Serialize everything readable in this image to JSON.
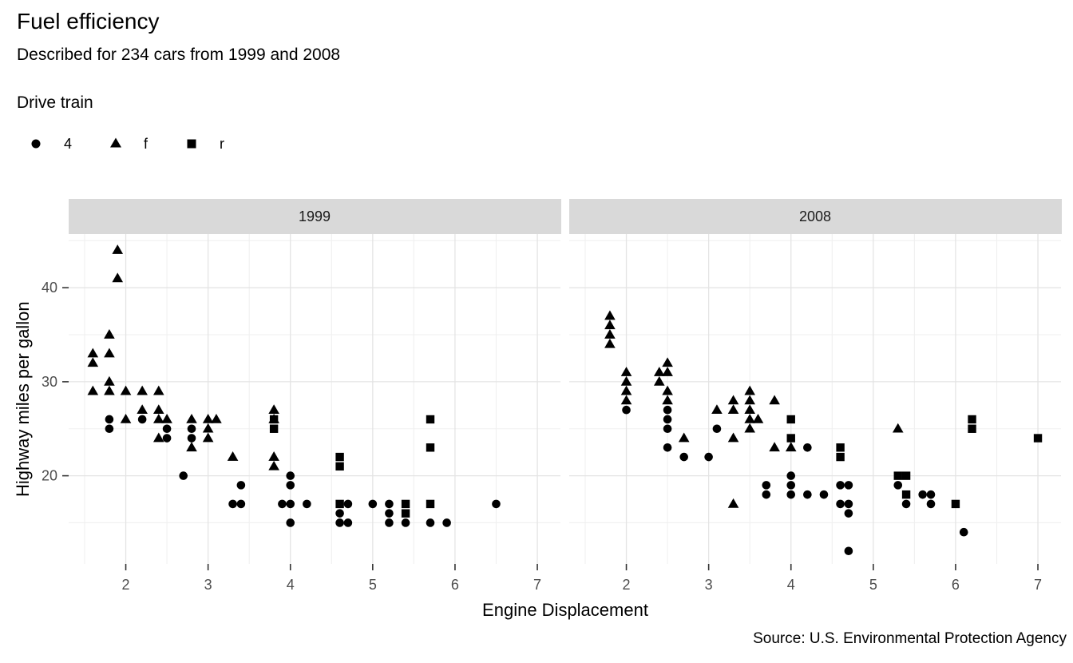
{
  "title": "Fuel efficiency",
  "subtitle": "Described for 234 cars from 1999 and 2008",
  "caption": "Source: U.S. Environmental Protection Agency",
  "axes": {
    "x_label": "Engine Displacement",
    "y_label": "Highway miles per gallon"
  },
  "legend": {
    "title": "Drive train",
    "items": [
      {
        "label": "4",
        "shape": "circle"
      },
      {
        "label": "f",
        "shape": "triangle"
      },
      {
        "label": "r",
        "shape": "square"
      }
    ]
  },
  "chart_data": {
    "type": "scatter",
    "xlabel": "Engine Displacement",
    "ylabel": "Highway miles per gallon",
    "facet_variable": "year",
    "shape_variable": "drive train",
    "point_color": "#000000",
    "x_domain": [
      1.306,
      7.281
    ],
    "y_domain": [
      10.62,
      45.71
    ],
    "x_ticks": [
      2,
      3,
      4,
      5,
      6,
      7
    ],
    "x_minor_ticks": [
      1.5,
      2.5,
      3.5,
      4.5,
      5.5,
      6.5
    ],
    "y_ticks": [
      20,
      30,
      40
    ],
    "y_minor_ticks": [
      15,
      25,
      35,
      45
    ],
    "grid": true,
    "legend_position": "top-left",
    "colors": {
      "strip_bg": "#d9d9d9",
      "strip_text": "#1a1a1a",
      "grid_major": "#e4e4e4",
      "grid_minor": "#f0f0f0",
      "tick_mark": "#333333",
      "tick_label": "#4d4d4d",
      "point": "#000000"
    },
    "facets": [
      {
        "label": "1999",
        "series": [
          {
            "drv": "r",
            "shape": "square",
            "points": [
              [
                3.8,
                26
              ],
              [
                3.8,
                25
              ],
              [
                4.6,
                22
              ],
              [
                4.6,
                21
              ],
              [
                4.6,
                17
              ],
              [
                5.4,
                17
              ],
              [
                5.4,
                16
              ],
              [
                5.7,
                26
              ],
              [
                5.7,
                23
              ],
              [
                5.7,
                17
              ]
            ]
          },
          {
            "drv": "4",
            "shape": "circle",
            "points": [
              [
                1.8,
                26
              ],
              [
                1.8,
                25
              ],
              [
                2.2,
                26
              ],
              [
                2.5,
                25
              ],
              [
                2.5,
                24
              ],
              [
                2.8,
                25
              ],
              [
                2.8,
                24
              ],
              [
                2.7,
                20
              ],
              [
                3.4,
                19
              ],
              [
                3.3,
                17
              ],
              [
                3.4,
                17
              ],
              [
                3.9,
                17
              ],
              [
                4.0,
                20
              ],
              [
                4.0,
                19
              ],
              [
                4.0,
                17
              ],
              [
                4.2,
                17
              ],
              [
                4.0,
                15
              ],
              [
                4.6,
                16
              ],
              [
                4.6,
                15
              ],
              [
                4.7,
                17
              ],
              [
                4.7,
                15
              ],
              [
                5.0,
                17
              ],
              [
                5.2,
                17
              ],
              [
                5.2,
                16
              ],
              [
                5.2,
                15
              ],
              [
                5.4,
                15
              ],
              [
                5.7,
                15
              ],
              [
                5.9,
                15
              ],
              [
                6.5,
                17
              ]
            ]
          },
          {
            "drv": "f",
            "shape": "triangle",
            "points": [
              [
                1.9,
                44
              ],
              [
                1.9,
                41
              ],
              [
                1.8,
                35
              ],
              [
                1.6,
                33
              ],
              [
                1.8,
                33
              ],
              [
                1.6,
                32
              ],
              [
                1.8,
                30
              ],
              [
                1.6,
                29
              ],
              [
                1.8,
                29
              ],
              [
                2.0,
                29
              ],
              [
                2.2,
                29
              ],
              [
                2.4,
                29
              ],
              [
                2.2,
                27
              ],
              [
                2.4,
                27
              ],
              [
                3.8,
                27
              ],
              [
                2.0,
                26
              ],
              [
                2.4,
                26
              ],
              [
                2.5,
                26
              ],
              [
                2.8,
                26
              ],
              [
                3.0,
                26
              ],
              [
                3.1,
                26
              ],
              [
                3.8,
                26
              ],
              [
                3.0,
                25
              ],
              [
                2.4,
                24
              ],
              [
                3.0,
                24
              ],
              [
                2.8,
                23
              ],
              [
                3.3,
                22
              ],
              [
                3.8,
                22
              ],
              [
                3.8,
                21
              ]
            ]
          }
        ]
      },
      {
        "label": "2008",
        "series": [
          {
            "drv": "r",
            "shape": "square",
            "points": [
              [
                4.0,
                26
              ],
              [
                4.0,
                24
              ],
              [
                4.6,
                23
              ],
              [
                4.6,
                22
              ],
              [
                5.3,
                20
              ],
              [
                5.4,
                20
              ],
              [
                5.4,
                18
              ],
              [
                6.0,
                17
              ],
              [
                6.2,
                26
              ],
              [
                6.2,
                25
              ],
              [
                7.0,
                24
              ]
            ]
          },
          {
            "drv": "4",
            "shape": "circle",
            "points": [
              [
                2.0,
                27
              ],
              [
                2.5,
                27
              ],
              [
                2.5,
                26
              ],
              [
                2.5,
                25
              ],
              [
                2.5,
                23
              ],
              [
                2.7,
                22
              ],
              [
                3.0,
                22
              ],
              [
                3.1,
                25
              ],
              [
                3.7,
                19
              ],
              [
                3.7,
                18
              ],
              [
                4.0,
                20
              ],
              [
                4.0,
                19
              ],
              [
                4.0,
                18
              ],
              [
                4.2,
                23
              ],
              [
                4.2,
                18
              ],
              [
                4.4,
                18
              ],
              [
                4.6,
                19
              ],
              [
                4.6,
                17
              ],
              [
                4.7,
                19
              ],
              [
                4.7,
                17
              ],
              [
                4.7,
                16
              ],
              [
                4.7,
                12
              ],
              [
                5.3,
                19
              ],
              [
                5.4,
                17
              ],
              [
                5.6,
                18
              ],
              [
                5.7,
                18
              ],
              [
                5.7,
                17
              ],
              [
                6.1,
                14
              ]
            ]
          },
          {
            "drv": "f",
            "shape": "triangle",
            "points": [
              [
                1.8,
                37
              ],
              [
                1.8,
                36
              ],
              [
                1.8,
                35
              ],
              [
                1.8,
                34
              ],
              [
                2.0,
                31
              ],
              [
                2.0,
                30
              ],
              [
                2.0,
                29
              ],
              [
                2.0,
                28
              ],
              [
                2.4,
                31
              ],
              [
                2.4,
                30
              ],
              [
                2.5,
                32
              ],
              [
                2.5,
                31
              ],
              [
                2.5,
                29
              ],
              [
                2.5,
                28
              ],
              [
                2.7,
                24
              ],
              [
                3.1,
                27
              ],
              [
                3.3,
                28
              ],
              [
                3.3,
                27
              ],
              [
                3.3,
                24
              ],
              [
                3.5,
                29
              ],
              [
                3.5,
                28
              ],
              [
                3.5,
                27
              ],
              [
                3.5,
                26
              ],
              [
                3.6,
                26
              ],
              [
                3.5,
                25
              ],
              [
                3.8,
                28
              ],
              [
                3.8,
                23
              ],
              [
                4.0,
                23
              ],
              [
                3.3,
                17
              ],
              [
                5.3,
                25
              ]
            ]
          }
        ]
      }
    ]
  }
}
